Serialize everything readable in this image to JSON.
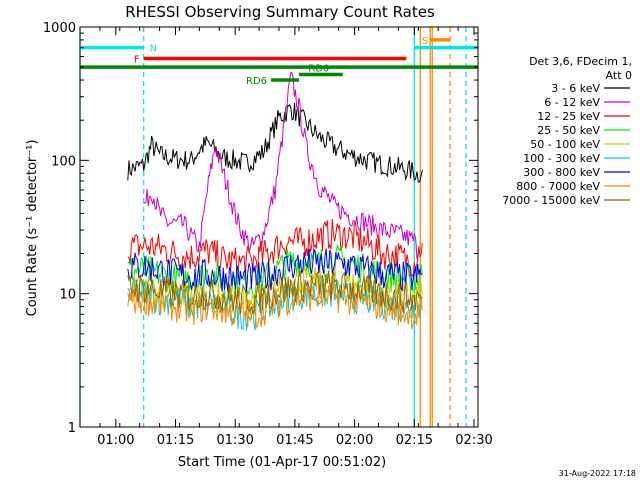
{
  "chart_data": {
    "type": "line",
    "title": "RHESSI Observing Summary Count Rates",
    "xlabel": "Start Time (01-Apr-17 00:51:02)",
    "ylabel": "Count Rate (s⁻¹ detector⁻¹)",
    "yscale": "log",
    "ylim": [
      1,
      1000
    ],
    "xlim_minutes": [
      0,
      100
    ],
    "x_ticks": [
      {
        "minute": 9,
        "label": "01:00"
      },
      {
        "minute": 24,
        "label": "01:15"
      },
      {
        "minute": 39,
        "label": "01:30"
      },
      {
        "minute": 54,
        "label": "01:45"
      },
      {
        "minute": 69,
        "label": "02:00"
      },
      {
        "minute": 84,
        "label": "02:15"
      },
      {
        "minute": 99,
        "label": "02:30"
      }
    ],
    "y_ticks": [
      {
        "value": 1,
        "label": "1"
      },
      {
        "value": 10,
        "label": "10"
      },
      {
        "value": 100,
        "label": "100"
      },
      {
        "value": 1000,
        "label": "1000"
      }
    ],
    "legend": {
      "header": [
        "Det 3,6, FDecim 1,",
        "Att 0"
      ],
      "placement": "right"
    },
    "series": [
      {
        "name": "3 - 6 keV",
        "color": "#000000",
        "points": [
          [
            12,
            85
          ],
          [
            16,
            92
          ],
          [
            18,
            130
          ],
          [
            20,
            110
          ],
          [
            24,
            102
          ],
          [
            28,
            100
          ],
          [
            30,
            120
          ],
          [
            32,
            135
          ],
          [
            36,
            105
          ],
          [
            40,
            98
          ],
          [
            42,
            95
          ],
          [
            46,
            115
          ],
          [
            50,
            210
          ],
          [
            53,
            245
          ],
          [
            56,
            200
          ],
          [
            60,
            150
          ],
          [
            64,
            125
          ],
          [
            68,
            110
          ],
          [
            72,
            100
          ],
          [
            76,
            93
          ],
          [
            80,
            88
          ],
          [
            84,
            82
          ],
          [
            85,
            78
          ],
          [
            86,
            85
          ]
        ]
      },
      {
        "name": "6 - 12 keV",
        "color": "#cc00cc",
        "points": [
          [
            16,
            45
          ],
          [
            18,
            60
          ],
          [
            20,
            40
          ],
          [
            22,
            34
          ],
          [
            26,
            33
          ],
          [
            30,
            22
          ],
          [
            32,
            60
          ],
          [
            34,
            130
          ],
          [
            36,
            80
          ],
          [
            38,
            50
          ],
          [
            40,
            32
          ],
          [
            43,
            22
          ],
          [
            46,
            28
          ],
          [
            49,
            60
          ],
          [
            52,
            260
          ],
          [
            53,
            420
          ],
          [
            55,
            250
          ],
          [
            57,
            120
          ],
          [
            60,
            65
          ],
          [
            64,
            45
          ],
          [
            68,
            38
          ],
          [
            72,
            34
          ],
          [
            76,
            30
          ],
          [
            80,
            28
          ],
          [
            84,
            25
          ],
          [
            85,
            20
          ]
        ]
      },
      {
        "name": "12 - 25 keV",
        "color": "#ff0000",
        "points": [
          [
            12,
            22
          ],
          [
            16,
            23
          ],
          [
            20,
            22
          ],
          [
            24,
            20
          ],
          [
            28,
            19
          ],
          [
            32,
            21
          ],
          [
            36,
            18
          ],
          [
            40,
            17
          ],
          [
            44,
            18
          ],
          [
            48,
            21
          ],
          [
            52,
            25
          ],
          [
            56,
            24
          ],
          [
            60,
            27
          ],
          [
            64,
            28
          ],
          [
            68,
            27
          ],
          [
            72,
            24
          ],
          [
            76,
            20
          ],
          [
            80,
            19
          ],
          [
            84,
            17
          ],
          [
            86,
            24
          ]
        ]
      },
      {
        "name": "25 - 50 keV",
        "color": "#00ee00",
        "points": [
          [
            12,
            15
          ],
          [
            16,
            15
          ],
          [
            20,
            14
          ],
          [
            24,
            13
          ],
          [
            28,
            13
          ],
          [
            32,
            14
          ],
          [
            36,
            13
          ],
          [
            40,
            12
          ],
          [
            44,
            12
          ],
          [
            48,
            14
          ],
          [
            52,
            17
          ],
          [
            56,
            18
          ],
          [
            60,
            17
          ],
          [
            64,
            18
          ],
          [
            68,
            17
          ],
          [
            72,
            15
          ],
          [
            76,
            14
          ],
          [
            80,
            13
          ],
          [
            84,
            13
          ],
          [
            86,
            14
          ]
        ]
      },
      {
        "name": "50 - 100 keV",
        "color": "#cccc00",
        "points": [
          [
            12,
            11
          ],
          [
            16,
            11
          ],
          [
            20,
            10
          ],
          [
            24,
            10
          ],
          [
            28,
            9.5
          ],
          [
            32,
            10
          ],
          [
            36,
            9.5
          ],
          [
            40,
            9
          ],
          [
            44,
            9
          ],
          [
            48,
            10
          ],
          [
            52,
            12
          ],
          [
            56,
            13
          ],
          [
            60,
            12
          ],
          [
            64,
            12
          ],
          [
            68,
            12
          ],
          [
            72,
            11
          ],
          [
            76,
            10
          ],
          [
            80,
            10
          ],
          [
            84,
            9.5
          ],
          [
            86,
            10
          ]
        ]
      },
      {
        "name": "100 - 300 keV",
        "color": "#00cccc",
        "points": [
          [
            12,
            10
          ],
          [
            16,
            10
          ],
          [
            20,
            9
          ],
          [
            24,
            9
          ],
          [
            28,
            8
          ],
          [
            32,
            8.5
          ],
          [
            36,
            8
          ],
          [
            40,
            7
          ],
          [
            44,
            7
          ],
          [
            48,
            8
          ],
          [
            52,
            9.5
          ],
          [
            56,
            10
          ],
          [
            60,
            10
          ],
          [
            64,
            10
          ],
          [
            68,
            9.5
          ],
          [
            72,
            9
          ],
          [
            76,
            8.5
          ],
          [
            80,
            8
          ],
          [
            84,
            7.5
          ],
          [
            86,
            8
          ]
        ]
      },
      {
        "name": "300 - 800 keV",
        "color": "#0000ff",
        "points": [
          [
            12,
            16
          ],
          [
            16,
            16
          ],
          [
            20,
            15
          ],
          [
            24,
            14
          ],
          [
            28,
            13.5
          ],
          [
            32,
            14
          ],
          [
            36,
            13.5
          ],
          [
            40,
            13
          ],
          [
            44,
            13
          ],
          [
            48,
            14
          ],
          [
            52,
            16
          ],
          [
            56,
            17
          ],
          [
            60,
            16.5
          ],
          [
            64,
            17
          ],
          [
            68,
            16.5
          ],
          [
            72,
            15
          ],
          [
            76,
            14
          ],
          [
            80,
            13.5
          ],
          [
            84,
            13
          ],
          [
            86,
            14
          ]
        ]
      },
      {
        "name": "800 - 7000 keV",
        "color": "#ff8800",
        "points": [
          [
            12,
            9
          ],
          [
            16,
            9
          ],
          [
            20,
            8.5
          ],
          [
            24,
            8
          ],
          [
            28,
            7.5
          ],
          [
            32,
            8
          ],
          [
            36,
            7.5
          ],
          [
            40,
            7
          ],
          [
            44,
            7
          ],
          [
            48,
            8
          ],
          [
            52,
            9
          ],
          [
            56,
            9.5
          ],
          [
            60,
            9.5
          ],
          [
            64,
            9.5
          ],
          [
            68,
            9
          ],
          [
            72,
            8.5
          ],
          [
            76,
            8
          ],
          [
            80,
            7.5
          ],
          [
            84,
            7
          ],
          [
            86,
            7.5
          ]
        ]
      },
      {
        "name": "7000 - 15000 keV",
        "color": "#996600",
        "points": [
          [
            12,
            11
          ],
          [
            16,
            11
          ],
          [
            20,
            10.5
          ],
          [
            24,
            10
          ],
          [
            28,
            9.5
          ],
          [
            32,
            10
          ],
          [
            36,
            9.5
          ],
          [
            40,
            9
          ],
          [
            44,
            9
          ],
          [
            48,
            10
          ],
          [
            52,
            11
          ],
          [
            56,
            11.5
          ],
          [
            60,
            11.5
          ],
          [
            64,
            11.5
          ],
          [
            68,
            11
          ],
          [
            72,
            10.5
          ],
          [
            76,
            10
          ],
          [
            80,
            9.5
          ],
          [
            84,
            9
          ],
          [
            86,
            9.5
          ]
        ]
      }
    ],
    "flag_bars": [
      {
        "label": "N",
        "color": "#00e5ee",
        "y": 700,
        "x_start": 0,
        "x_end": 16,
        "label_at": 17,
        "label_side": "right"
      },
      {
        "label": "",
        "color": "#00e5ee",
        "y": 700,
        "x_start": 84,
        "x_end": 100,
        "label_at": 0,
        "label_side": "none"
      },
      {
        "label": "F",
        "color": "#ff0000",
        "y": 580,
        "x_start": 16,
        "x_end": 82,
        "label_at": 15,
        "label_side": "left"
      },
      {
        "label": "S",
        "color": "#ff8800",
        "y": 800,
        "x_start": 88,
        "x_end": 93,
        "label_at": 86,
        "label_side": "left"
      },
      {
        "label": "",
        "color": "#008800",
        "y": 500,
        "x_start": 0,
        "x_end": 100,
        "label_at": 0,
        "label_side": "none"
      },
      {
        "label": "RD0",
        "color": "#008800",
        "y": 440,
        "x_start": 55,
        "x_end": 66,
        "label_at": 60,
        "label_side": "above"
      },
      {
        "label": "RD6",
        "color": "#008800",
        "y": 400,
        "x_start": 48,
        "x_end": 55,
        "label_at": 47,
        "label_side": "left"
      }
    ],
    "vertical_lines": [
      {
        "x": 0,
        "color": "#00e5ee",
        "style": "solid"
      },
      {
        "x": 16,
        "color": "#00e5ee",
        "style": "dashed"
      },
      {
        "x": 84,
        "color": "#00e5ee",
        "style": "solid"
      },
      {
        "x": 97,
        "color": "#00e5ee",
        "style": "dashed"
      },
      {
        "x": 85.5,
        "color": "#ff8800",
        "style": "solid"
      },
      {
        "x": 88,
        "color": "#ff8800",
        "style": "solid"
      },
      {
        "x": 88.5,
        "color": "#ff8800",
        "style": "solid"
      },
      {
        "x": 93,
        "color": "#ff8800",
        "style": "dashed"
      }
    ],
    "grid": false
  },
  "footer": {
    "timestamp": "31-Aug-2022 17:18"
  }
}
